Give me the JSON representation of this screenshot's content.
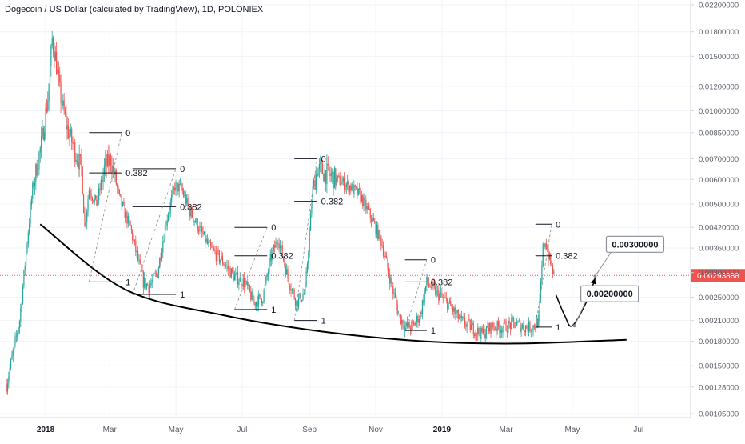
{
  "title": "Dogecoin / US Dollar (calculated by TradingView), 1D, POLONIEX",
  "colors": {
    "up": "#26a69a",
    "down": "#ef5350",
    "grid": "#f0f3fa",
    "axis_text": "#555b66",
    "price_line": "#ef5350",
    "price_label_bg": "#ef5350",
    "curve": "#000000",
    "fib": "#131722"
  },
  "chart_data": {
    "type": "candlestick",
    "x_axis": {
      "type": "date",
      "tick_labels": [
        "2018",
        "Mar",
        "May",
        "Jul",
        "Sep",
        "Nov",
        "2019",
        "Mar",
        "May",
        "Jul"
      ],
      "tick_dates": [
        "2018-01-01",
        "2018-03-01",
        "2018-05-01",
        "2018-07-01",
        "2018-09-01",
        "2018-11-01",
        "2019-01-01",
        "2019-03-01",
        "2019-05-01",
        "2019-07-01"
      ],
      "bold_labels": [
        "2018",
        "2019"
      ],
      "range": [
        "2017-11-20",
        "2019-08-18"
      ]
    },
    "y_axis": {
      "scale": "log",
      "position": "right",
      "tick_labels": [
        "0.02200000",
        "0.01800000",
        "0.01500000",
        "0.01200000",
        "0.01000000",
        "0.00850000",
        "0.00700000",
        "0.00600000",
        "0.00500000",
        "0.00420000",
        "0.00360000",
        "0.00300000",
        "0.00250000",
        "0.00210000",
        "0.00180000",
        "0.00150000",
        "0.00128000",
        "0.00105000"
      ],
      "tick_values": [
        0.022,
        0.018,
        0.015,
        0.012,
        0.01,
        0.0085,
        0.007,
        0.006,
        0.005,
        0.0042,
        0.0036,
        0.003,
        0.0025,
        0.0021,
        0.0018,
        0.0015,
        0.00128,
        0.00105
      ],
      "range": [
        0.00102,
        0.0228
      ]
    },
    "price_path": [
      [
        "2017-11-26",
        0.0013
      ],
      [
        "2017-12-08",
        0.0021
      ],
      [
        "2017-12-15",
        0.0038
      ],
      [
        "2017-12-20",
        0.0056
      ],
      [
        "2017-12-28",
        0.0078
      ],
      [
        "2018-01-03",
        0.011
      ],
      [
        "2018-01-07",
        0.017
      ],
      [
        "2018-01-10",
        0.015
      ],
      [
        "2018-01-14",
        0.0115
      ],
      [
        "2018-01-20",
        0.009
      ],
      [
        "2018-01-27",
        0.0076
      ],
      [
        "2018-02-03",
        0.0065
      ],
      [
        "2018-02-06",
        0.0042
      ],
      [
        "2018-02-10",
        0.0056
      ],
      [
        "2018-02-17",
        0.005
      ],
      [
        "2018-02-24",
        0.0065
      ],
      [
        "2018-03-02",
        0.007
      ],
      [
        "2018-03-10",
        0.0052
      ],
      [
        "2018-03-20",
        0.0042
      ],
      [
        "2018-03-27",
        0.0033
      ],
      [
        "2018-04-01",
        0.0028
      ],
      [
        "2018-04-06",
        0.0027
      ],
      [
        "2018-04-14",
        0.003
      ],
      [
        "2018-04-22",
        0.0044
      ],
      [
        "2018-04-30",
        0.0057
      ],
      [
        "2018-05-06",
        0.0056
      ],
      [
        "2018-05-13",
        0.0048
      ],
      [
        "2018-05-22",
        0.0042
      ],
      [
        "2018-06-01",
        0.0036
      ],
      [
        "2018-06-12",
        0.0033
      ],
      [
        "2018-06-24",
        0.0029
      ],
      [
        "2018-07-03",
        0.0028
      ],
      [
        "2018-07-12",
        0.0024
      ],
      [
        "2018-07-20",
        0.0025
      ],
      [
        "2018-07-27",
        0.0033
      ],
      [
        "2018-08-03",
        0.0039
      ],
      [
        "2018-08-12",
        0.0029
      ],
      [
        "2018-08-20",
        0.0024
      ],
      [
        "2018-08-28",
        0.0026
      ],
      [
        "2018-09-04",
        0.0056
      ],
      [
        "2018-09-08",
        0.0065
      ],
      [
        "2018-09-16",
        0.0063
      ],
      [
        "2018-09-26",
        0.006
      ],
      [
        "2018-10-08",
        0.0057
      ],
      [
        "2018-10-18",
        0.0053
      ],
      [
        "2018-10-28",
        0.0045
      ],
      [
        "2018-11-06",
        0.0038
      ],
      [
        "2018-11-14",
        0.0029
      ],
      [
        "2018-11-22",
        0.0022
      ],
      [
        "2018-11-28",
        0.002
      ],
      [
        "2018-12-05",
        0.002
      ],
      [
        "2018-12-12",
        0.0022
      ],
      [
        "2018-12-18",
        0.0028
      ],
      [
        "2018-12-26",
        0.0026
      ],
      [
        "2019-01-06",
        0.0024
      ],
      [
        "2019-01-18",
        0.0021
      ],
      [
        "2019-01-28",
        0.002
      ],
      [
        "2019-02-06",
        0.0019
      ],
      [
        "2019-02-16",
        0.002
      ],
      [
        "2019-02-26",
        0.002
      ],
      [
        "2019-03-08",
        0.00205
      ],
      [
        "2019-03-18",
        0.002
      ],
      [
        "2019-03-25",
        0.002
      ],
      [
        "2019-03-31",
        0.0021
      ],
      [
        "2019-04-02",
        0.0027
      ],
      [
        "2019-04-04",
        0.0036
      ],
      [
        "2019-04-06",
        0.0038
      ],
      [
        "2019-04-10",
        0.0033
      ],
      [
        "2019-04-14",
        0.00294
      ]
    ],
    "current_price": {
      "value": 0.00293888,
      "label": "0.00293888"
    },
    "fib_retracements": [
      {
        "x_start": "2018-02-10",
        "x_end": "2018-03-12",
        "price_0": 0.0085,
        "price_0382": 0.0063,
        "price_1": 0.0028,
        "label_0": "0",
        "label_0382": "0.382",
        "label_1": "1"
      },
      {
        "x_start": "2018-03-22",
        "x_end": "2018-05-01",
        "price_0": 0.0065,
        "price_0382": 0.0049,
        "price_1": 0.00255,
        "label_0": "0",
        "label_0382": "0.382",
        "label_1": "1"
      },
      {
        "x_start": "2018-06-24",
        "x_end": "2018-07-24",
        "price_0": 0.0042,
        "price_0382": 0.0034,
        "price_1": 0.00228,
        "label_0": "0",
        "label_0382": "0.382",
        "label_1": "1"
      },
      {
        "x_start": "2018-08-18",
        "x_end": "2018-09-08",
        "price_0": 0.007,
        "price_0382": 0.0051,
        "price_1": 0.0021,
        "label_0": "0",
        "label_0382": "0.382",
        "label_1": "1"
      },
      {
        "x_start": "2018-11-28",
        "x_end": "2018-12-18",
        "price_0": 0.0033,
        "price_0382": 0.0028,
        "price_1": 0.00195,
        "label_0": "0",
        "label_0382": "0.382",
        "label_1": "1"
      },
      {
        "x_start": "2019-03-28",
        "x_end": "2019-04-12",
        "price_0": 0.0043,
        "price_0382": 0.0034,
        "price_1": 0.002,
        "label_0": "0",
        "label_0382": "0.382",
        "label_1": "1"
      }
    ],
    "bowl_curve": [
      [
        "2017-12-27",
        0.0043
      ],
      [
        "2018-03-15",
        0.00265
      ],
      [
        "2018-06-15",
        0.00218
      ],
      [
        "2018-09-15",
        0.00193
      ],
      [
        "2018-12-15",
        0.0018
      ],
      [
        "2019-03-10",
        0.00177
      ],
      [
        "2019-06-20",
        0.00182
      ]
    ],
    "projection": [
      [
        "2019-04-16",
        0.00254
      ],
      [
        "2019-04-24",
        0.00218
      ],
      [
        "2019-05-01",
        0.00202
      ],
      [
        "2019-05-15",
        0.00245
      ],
      [
        "2019-05-22",
        0.00288
      ]
    ],
    "callouts": [
      {
        "text": "0.00200000",
        "anchor": [
          "2019-05-03",
          0.00202
        ]
      },
      {
        "text": "0.00300000",
        "anchor": [
          "2019-05-22",
          0.00292
        ]
      }
    ]
  }
}
